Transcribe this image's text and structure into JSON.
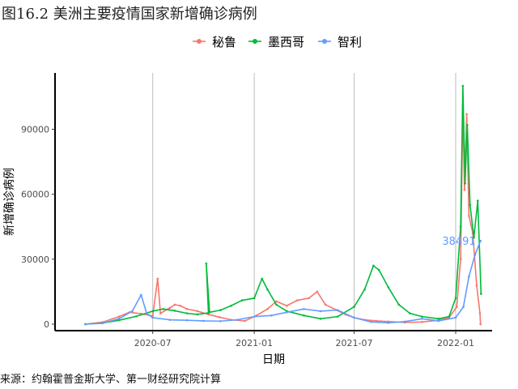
{
  "title": "图16.2 美洲主要疫情国家新增确诊病例",
  "source": "来源：约翰霍普金斯大学、第一财经研究院计算",
  "chart_data": {
    "type": "line",
    "xlabel": "日期",
    "ylabel": "新增确诊病例",
    "x_range": [
      "2020-03-01",
      "2022-02-18"
    ],
    "ylim": [
      -3000,
      116000
    ],
    "x_ticks": [
      "2020-07",
      "2021-01",
      "2021-07",
      "2022-01"
    ],
    "y_ticks": [
      0,
      30000,
      60000,
      90000
    ],
    "legend_position": "top",
    "grid": "vertical major lines only",
    "series": [
      {
        "name": "秘鲁",
        "color": "#F8766D",
        "points": [
          [
            "2020-03-01",
            0
          ],
          [
            "2020-04-01",
            900
          ],
          [
            "2020-05-01",
            3500
          ],
          [
            "2020-05-20",
            5500
          ],
          [
            "2020-06-10",
            4800
          ],
          [
            "2020-07-01",
            3800
          ],
          [
            "2020-07-10",
            21000
          ],
          [
            "2020-07-15",
            5000
          ],
          [
            "2020-08-01",
            7500
          ],
          [
            "2020-08-10",
            9000
          ],
          [
            "2020-08-20",
            8500
          ],
          [
            "2020-09-01",
            7000
          ],
          [
            "2020-09-20",
            6000
          ],
          [
            "2020-10-10",
            4500
          ],
          [
            "2020-10-30",
            3200
          ],
          [
            "2020-11-20",
            2000
          ],
          [
            "2020-12-15",
            1500
          ],
          [
            "2021-01-05",
            4000
          ],
          [
            "2021-01-25",
            7000
          ],
          [
            "2021-02-10",
            10500
          ],
          [
            "2021-03-01",
            8500
          ],
          [
            "2021-03-20",
            11000
          ],
          [
            "2021-04-10",
            12000
          ],
          [
            "2021-04-25",
            15000
          ],
          [
            "2021-05-10",
            9000
          ],
          [
            "2021-05-30",
            6500
          ],
          [
            "2021-06-15",
            4500
          ],
          [
            "2021-07-01",
            3000
          ],
          [
            "2021-07-20",
            2000
          ],
          [
            "2021-08-10",
            1500
          ],
          [
            "2021-09-01",
            1200
          ],
          [
            "2021-10-01",
            800
          ],
          [
            "2021-11-01",
            1000
          ],
          [
            "2021-12-01",
            1800
          ],
          [
            "2021-12-20",
            3000
          ],
          [
            "2022-01-03",
            8000
          ],
          [
            "2022-01-10",
            30000
          ],
          [
            "2022-01-14",
            100000
          ],
          [
            "2022-01-17",
            62000
          ],
          [
            "2022-01-21",
            97000
          ],
          [
            "2022-01-25",
            50000
          ],
          [
            "2022-02-01",
            42000
          ],
          [
            "2022-02-08",
            18000
          ],
          [
            "2022-02-14",
            5000
          ],
          [
            "2022-02-15",
            0
          ]
        ]
      },
      {
        "name": "墨西哥",
        "color": "#00BA38",
        "points": [
          [
            "2020-03-01",
            0
          ],
          [
            "2020-04-01",
            500
          ],
          [
            "2020-05-01",
            1800
          ],
          [
            "2020-06-01",
            3600
          ],
          [
            "2020-07-01",
            6000
          ],
          [
            "2020-07-20",
            7000
          ],
          [
            "2020-08-10",
            6200
          ],
          [
            "2020-09-01",
            5000
          ],
          [
            "2020-09-20",
            4500
          ],
          [
            "2020-10-10",
            5200
          ],
          [
            "2020-10-06",
            28000
          ],
          [
            "2020-10-12",
            5500
          ],
          [
            "2020-11-01",
            6500
          ],
          [
            "2020-11-20",
            8500
          ],
          [
            "2020-12-10",
            11000
          ],
          [
            "2021-01-01",
            12000
          ],
          [
            "2021-01-15",
            21000
          ],
          [
            "2021-01-25",
            16000
          ],
          [
            "2021-02-10",
            9000
          ],
          [
            "2021-03-01",
            6000
          ],
          [
            "2021-04-01",
            4000
          ],
          [
            "2021-05-01",
            2500
          ],
          [
            "2021-06-01",
            3500
          ],
          [
            "2021-07-01",
            8000
          ],
          [
            "2021-07-20",
            16000
          ],
          [
            "2021-08-05",
            27000
          ],
          [
            "2021-08-15",
            25000
          ],
          [
            "2021-09-01",
            17000
          ],
          [
            "2021-09-20",
            9000
          ],
          [
            "2021-10-10",
            5000
          ],
          [
            "2021-11-01",
            3500
          ],
          [
            "2021-12-01",
            2500
          ],
          [
            "2021-12-20",
            3500
          ],
          [
            "2022-01-01",
            12000
          ],
          [
            "2022-01-10",
            45000
          ],
          [
            "2022-01-14",
            110000
          ],
          [
            "2022-01-18",
            65000
          ],
          [
            "2022-01-22",
            92000
          ],
          [
            "2022-01-27",
            55000
          ],
          [
            "2022-02-03",
            40000
          ],
          [
            "2022-02-10",
            57000
          ],
          [
            "2022-02-16",
            14000
          ]
        ]
      },
      {
        "name": "智利",
        "color": "#619CFF",
        "points": [
          [
            "2020-03-01",
            0
          ],
          [
            "2020-04-01",
            400
          ],
          [
            "2020-05-01",
            2500
          ],
          [
            "2020-05-25",
            6000
          ],
          [
            "2020-06-10",
            13500
          ],
          [
            "2020-06-20",
            5000
          ],
          [
            "2020-07-01",
            3000
          ],
          [
            "2020-08-01",
            2000
          ],
          [
            "2020-09-01",
            1800
          ],
          [
            "2020-10-01",
            1500
          ],
          [
            "2020-11-01",
            1400
          ],
          [
            "2020-12-01",
            2000
          ],
          [
            "2021-01-01",
            3500
          ],
          [
            "2021-02-01",
            4000
          ],
          [
            "2021-03-01",
            5500
          ],
          [
            "2021-04-01",
            7000
          ],
          [
            "2021-05-01",
            6000
          ],
          [
            "2021-06-01",
            6500
          ],
          [
            "2021-07-01",
            3000
          ],
          [
            "2021-08-01",
            1000
          ],
          [
            "2021-09-01",
            600
          ],
          [
            "2021-10-01",
            1200
          ],
          [
            "2021-11-01",
            2500
          ],
          [
            "2021-12-01",
            1500
          ],
          [
            "2022-01-01",
            3000
          ],
          [
            "2022-01-15",
            8000
          ],
          [
            "2022-01-25",
            22000
          ],
          [
            "2022-02-05",
            32000
          ],
          [
            "2022-02-15",
            38491
          ]
        ]
      }
    ],
    "annotations": [
      {
        "text": "38491",
        "series": "智利",
        "x": "2022-02-15",
        "y": 38491
      }
    ]
  }
}
